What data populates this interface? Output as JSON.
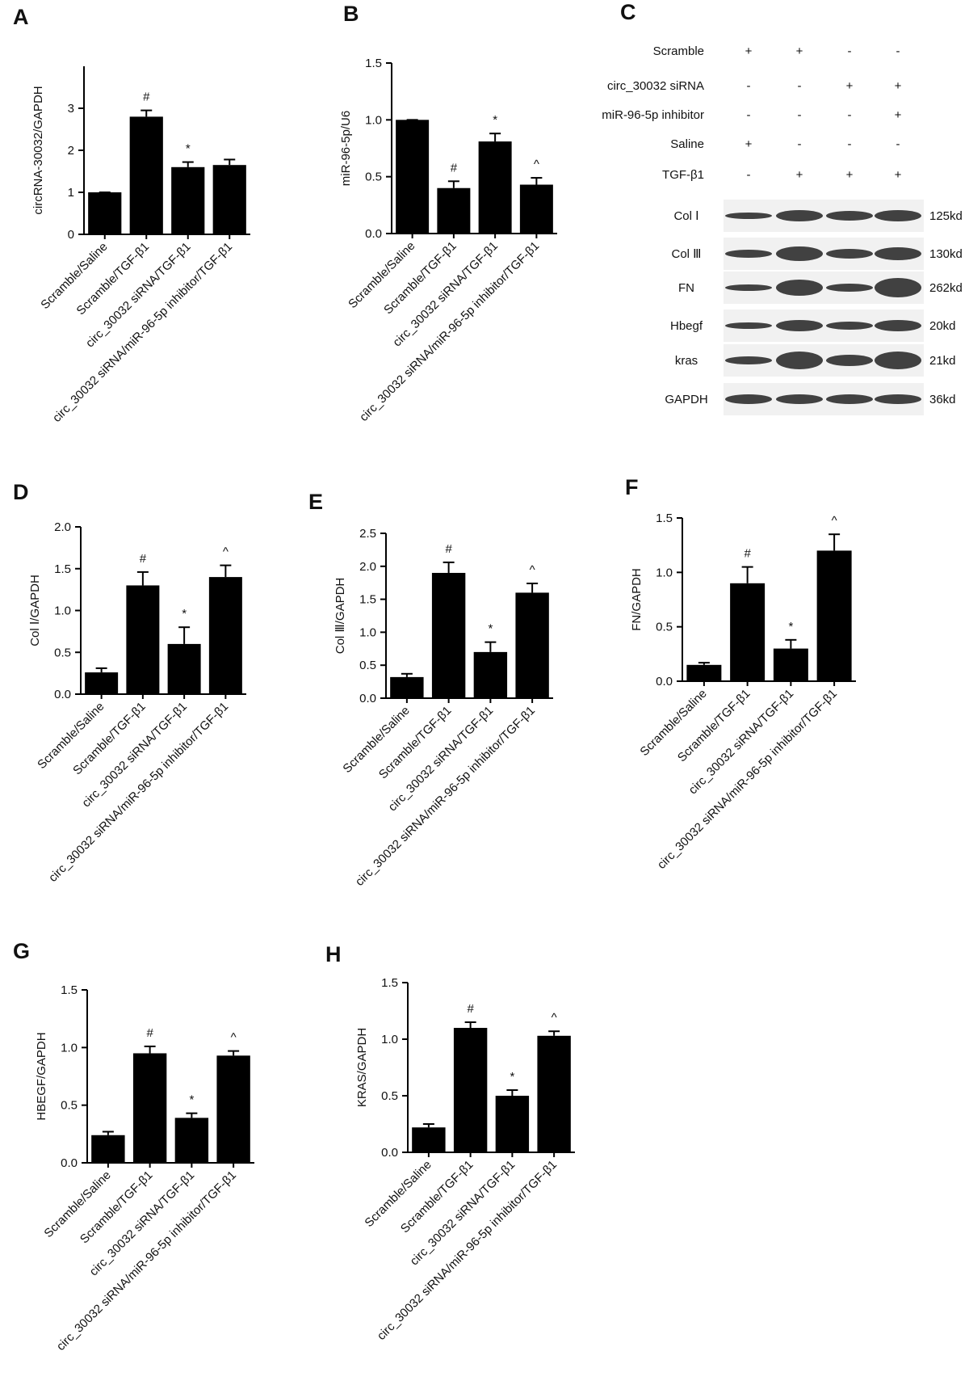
{
  "chart_data": [
    {
      "type": "bar",
      "panel": "A",
      "ylabel": "circRNA-30032/GAPDH",
      "categories": [
        "Scramble/Saline",
        "Scramble/TGF-β1",
        "circ_30032 siRNA/TGF-β1",
        "circ_30032 siRNA/miR-96-5p inhibitor/TGF-β1"
      ],
      "values": [
        1.0,
        2.8,
        1.6,
        1.65
      ],
      "errors": [
        0,
        0.15,
        0.12,
        0.13
      ],
      "annotations": [
        null,
        "#",
        "*",
        null
      ],
      "color": "#000000",
      "ylim": [
        0,
        4
      ],
      "yticks": [
        0,
        1,
        2,
        3
      ]
    },
    {
      "type": "bar",
      "panel": "B",
      "ylabel": "miR-96-5p/U6",
      "categories": [
        "Scramble/Saline",
        "Scramble/TGF-β1",
        "circ_30032 siRNA/TGF-β1",
        "circ_30032 siRNA/miR-96-5p inhibitor/TGF-β1"
      ],
      "values": [
        1.0,
        0.4,
        0.81,
        0.43
      ],
      "errors": [
        0,
        0.06,
        0.07,
        0.06
      ],
      "annotations": [
        null,
        "#",
        "*",
        "^"
      ],
      "color": "#000000",
      "ylim": [
        0,
        1.5
      ],
      "yticks": [
        {
          "value": 0,
          "label": "0.0"
        },
        0.5,
        {
          "value": 1,
          "label": "1.0"
        },
        1.5
      ]
    },
    {
      "type": "bar",
      "panel": "D",
      "ylabel": "Col Ⅰ/GAPDH",
      "categories": [
        "Scramble/Saline",
        "Scramble/TGF-β1",
        "circ_30032 siRNA/TGF-β1",
        "circ_30032 siRNA/miR-96-5p inhibitor/TGF-β1"
      ],
      "values": [
        0.26,
        1.3,
        0.6,
        1.4
      ],
      "errors": [
        0.05,
        0.16,
        0.2,
        0.14
      ],
      "annotations": [
        null,
        "#",
        "*",
        "^"
      ],
      "color": "#000000",
      "ylim": [
        0,
        2
      ],
      "yticks": [
        {
          "value": 0,
          "label": "0.0"
        },
        0.5,
        {
          "value": 1,
          "label": "1.0"
        },
        1.5,
        {
          "value": 2,
          "label": "2.0"
        }
      ]
    },
    {
      "type": "bar",
      "panel": "E",
      "ylabel": "Col Ⅲ/GAPDH",
      "categories": [
        "Scramble/Saline",
        "Scramble/TGF-β1",
        "circ_30032 siRNA/TGF-β1",
        "circ_30032 siRNA/miR-96-5p inhibitor/TGF-β1"
      ],
      "values": [
        0.32,
        1.9,
        0.7,
        1.6
      ],
      "errors": [
        0.05,
        0.16,
        0.15,
        0.14
      ],
      "annotations": [
        null,
        "#",
        "*",
        "^"
      ],
      "color": "#000000",
      "ylim": [
        0,
        2.5
      ],
      "yticks": [
        {
          "value": 0,
          "label": "0.0"
        },
        0.5,
        {
          "value": 1,
          "label": "1.0"
        },
        1.5,
        {
          "value": 2,
          "label": "2.0"
        },
        2.5
      ]
    },
    {
      "type": "bar",
      "panel": "F",
      "ylabel": "FN/GAPDH",
      "categories": [
        "Scramble/Saline",
        "Scramble/TGF-β1",
        "circ_30032 siRNA/TGF-β1",
        "circ_30032 siRNA/miR-96-5p inhibitor/TGF-β1"
      ],
      "values": [
        0.15,
        0.9,
        0.3,
        1.2
      ],
      "errors": [
        0.02,
        0.15,
        0.08,
        0.15
      ],
      "annotations": [
        null,
        "#",
        "*",
        "^"
      ],
      "color": "#000000",
      "ylim": [
        0,
        1.5
      ],
      "yticks": [
        {
          "value": 0,
          "label": "0.0"
        },
        0.5,
        {
          "value": 1,
          "label": "1.0"
        },
        1.5
      ]
    },
    {
      "type": "bar",
      "panel": "G",
      "ylabel": "HBEGF/GAPDH",
      "categories": [
        "Scramble/Saline",
        "Scramble/TGF-β1",
        "circ_30032 siRNA/TGF-β1",
        "circ_30032 siRNA/miR-96-5p inhibitor/TGF-β1"
      ],
      "values": [
        0.24,
        0.95,
        0.39,
        0.93
      ],
      "errors": [
        0.03,
        0.06,
        0.04,
        0.04
      ],
      "annotations": [
        null,
        "#",
        "*",
        "^"
      ],
      "color": "#000000",
      "ylim": [
        0,
        1.5
      ],
      "yticks": [
        {
          "value": 0,
          "label": "0.0"
        },
        0.5,
        {
          "value": 1,
          "label": "1.0"
        },
        1.5
      ]
    },
    {
      "type": "bar",
      "panel": "H",
      "ylabel": "KRAS/GAPDH",
      "categories": [
        "Scramble/Saline",
        "Scramble/TGF-β1",
        "circ_30032 siRNA/TGF-β1",
        "circ_30032 siRNA/miR-96-5p inhibitor/TGF-β1"
      ],
      "values": [
        0.22,
        1.1,
        0.5,
        1.03
      ],
      "errors": [
        0.03,
        0.05,
        0.05,
        0.04
      ],
      "annotations": [
        null,
        "#",
        "*",
        "^"
      ],
      "color": "#000000",
      "ylim": [
        0,
        1.5
      ],
      "yticks": [
        {
          "value": 0,
          "label": "0.0"
        },
        0.5,
        {
          "value": 1,
          "label": "1.0"
        },
        1.5
      ]
    }
  ],
  "blot": {
    "panel": "C",
    "conditions": [
      {
        "label": "Scramble",
        "signs": [
          "+",
          "+",
          "-",
          "-"
        ]
      },
      {
        "label": "circ_30032 siRNA",
        "signs": [
          "-",
          "-",
          "+",
          "+"
        ]
      },
      {
        "label": "miR-96-5p inhibitor",
        "signs": [
          "-",
          "-",
          "-",
          "+"
        ]
      },
      {
        "label": "Saline",
        "signs": [
          "+",
          "-",
          "-",
          "-"
        ]
      },
      {
        "label": "TGF-β1",
        "signs": [
          "-",
          "+",
          "+",
          "+"
        ]
      }
    ],
    "bands": [
      {
        "label": "Col Ⅰ",
        "size": "125kd"
      },
      {
        "label": "Col Ⅲ",
        "size": "130kd"
      },
      {
        "label": "FN",
        "size": "262kd"
      },
      {
        "label": "Hbegf",
        "size": "20kd"
      },
      {
        "label": "kras",
        "size": "21kd"
      },
      {
        "label": "GAPDH",
        "size": "36kd"
      }
    ]
  }
}
